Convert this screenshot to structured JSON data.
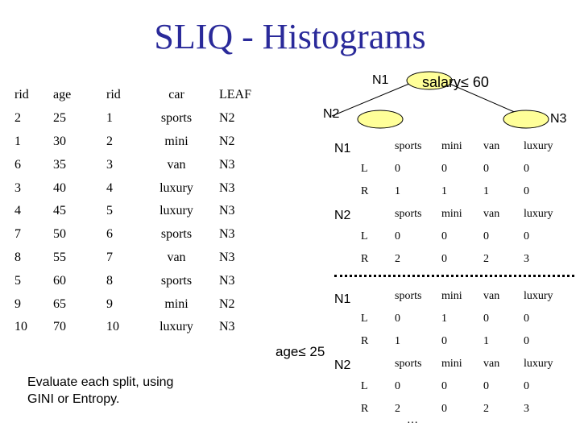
{
  "title": "SLIQ - Histograms",
  "data_table": {
    "headers": [
      "rid",
      "age",
      "rid",
      "car",
      "LEAF"
    ],
    "rows": [
      [
        "2",
        "25",
        "1",
        "sports",
        "N2"
      ],
      [
        "1",
        "30",
        "2",
        "mini",
        "N2"
      ],
      [
        "6",
        "35",
        "3",
        "van",
        "N3"
      ],
      [
        "3",
        "40",
        "4",
        "luxury",
        "N3"
      ],
      [
        "4",
        "45",
        "5",
        "luxury",
        "N3"
      ],
      [
        "7",
        "50",
        "6",
        "sports",
        "N3"
      ],
      [
        "8",
        "55",
        "7",
        "van",
        "N3"
      ],
      [
        "5",
        "60",
        "8",
        "sports",
        "N3"
      ],
      [
        "9",
        "65",
        "9",
        "mini",
        "N2"
      ],
      [
        "10",
        "70",
        "10",
        "luxury",
        "N3"
      ]
    ]
  },
  "tree": {
    "root_label": "N1",
    "split_label": "salary≤ 60",
    "left_label": "N2",
    "right_label": "N3"
  },
  "histograms": {
    "columns": [
      "sports",
      "mini",
      "van",
      "luxury"
    ],
    "upper": [
      {
        "node": "N1",
        "rows": [
          [
            "L",
            "0",
            "0",
            "0",
            "0"
          ],
          [
            "R",
            "1",
            "1",
            "1",
            "0"
          ]
        ]
      },
      {
        "node": "N2",
        "rows": [
          [
            "L",
            "0",
            "0",
            "0",
            "0"
          ],
          [
            "R",
            "2",
            "0",
            "2",
            "3"
          ]
        ]
      }
    ],
    "lower": [
      {
        "node": "N1",
        "rows": [
          [
            "L",
            "0",
            "1",
            "0",
            "0"
          ],
          [
            "R",
            "1",
            "0",
            "1",
            "0"
          ]
        ]
      },
      {
        "node": "N2",
        "rows": [
          [
            "L",
            "0",
            "0",
            "0",
            "0"
          ],
          [
            "R",
            "2",
            "0",
            "2",
            "3"
          ]
        ]
      }
    ]
  },
  "age_split_label": "age≤ 25",
  "ellipsis": "…",
  "note": [
    "Evaluate each split, using",
    "GINI or Entropy."
  ]
}
